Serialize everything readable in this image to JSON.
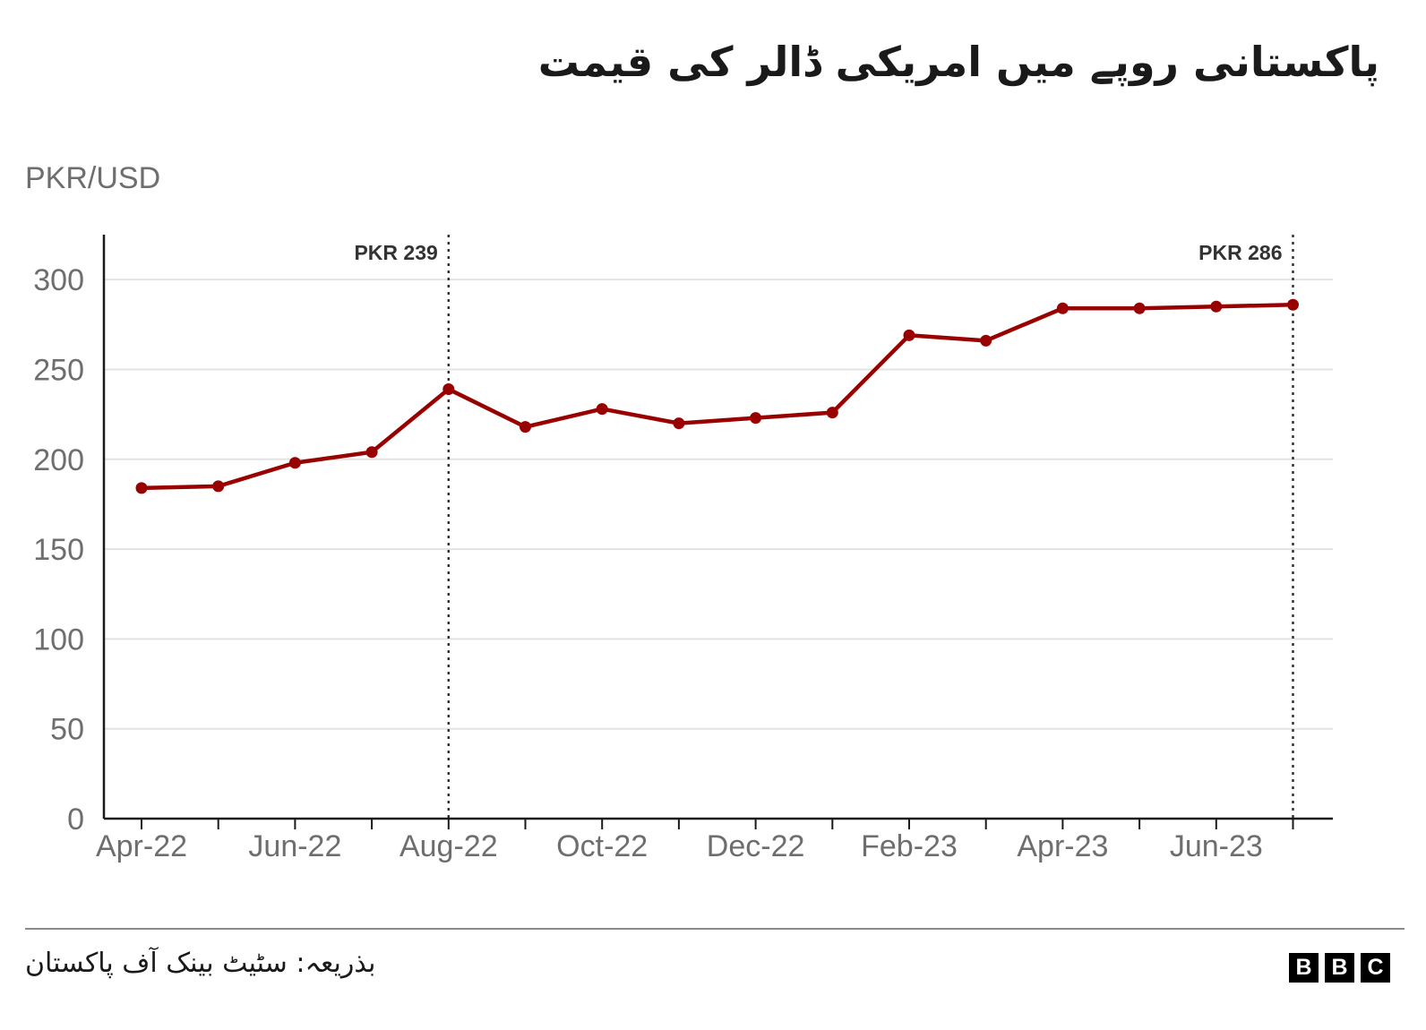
{
  "chart_data": {
    "type": "line",
    "title": "پاکستانی روپے میں امریکی ڈالر کی قیمت",
    "ylabel": "PKR/USD",
    "xlabel": "",
    "ylim": [
      0,
      325
    ],
    "y_ticks": [
      0,
      50,
      100,
      150,
      200,
      250,
      300
    ],
    "x_tick_labels": [
      "Apr-22",
      "Jun-22",
      "Aug-22",
      "Oct-22",
      "Dec-22",
      "Feb-23",
      "Apr-23",
      "Jun-23"
    ],
    "x": [
      "Apr-22",
      "May-22",
      "Jun-22",
      "Jul-22",
      "Aug-22",
      "Sep-22",
      "Oct-22",
      "Nov-22",
      "Dec-22",
      "Jan-23",
      "Feb-23",
      "Mar-23",
      "Apr-23",
      "May-23",
      "Jun-23",
      "Jul-23"
    ],
    "series": [
      {
        "values": [
          184,
          185,
          198,
          204,
          239,
          218,
          228,
          220,
          223,
          226,
          269,
          266,
          284,
          284,
          285,
          286
        ]
      }
    ],
    "annotations": [
      {
        "x": "Aug-22",
        "label": "PKR 239"
      },
      {
        "x": "Jul-23",
        "label": "PKR 286"
      }
    ],
    "grid": true,
    "line_color": "#990000"
  },
  "footer": {
    "source": "بذریعہ: سٹیٹ بینک آف پاکستان",
    "logo": [
      "B",
      "B",
      "C"
    ]
  }
}
